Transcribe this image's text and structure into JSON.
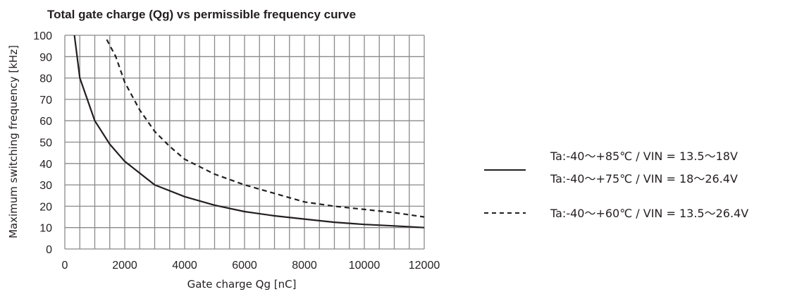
{
  "chart_data": {
    "type": "line",
    "title": "Total gate charge (Qg) vs permissible frequency curve",
    "xlabel": "Gate charge Qg [nC]",
    "ylabel": "Maximum switching frequency [kHz]",
    "xlim": [
      0,
      12000
    ],
    "ylim": [
      0,
      100
    ],
    "x_ticks": [
      "0",
      "2000",
      "4000",
      "6000",
      "8000",
      "10000",
      "12000"
    ],
    "y_ticks": [
      "0",
      "10",
      "20",
      "30",
      "40",
      "50",
      "60",
      "70",
      "80",
      "90",
      "100"
    ],
    "grid": true,
    "legend_position": "right",
    "series": [
      {
        "style": "solid",
        "labels": [
          "Ta:-40～+85℃ / VIN = 13.5～18V",
          "Ta:-40～+75℃ / VIN = 18～26.4V"
        ],
        "points": [
          [
            320,
            100
          ],
          [
            500,
            80
          ],
          [
            750,
            70
          ],
          [
            1000,
            60
          ],
          [
            1500,
            49
          ],
          [
            2000,
            41
          ],
          [
            3000,
            30
          ],
          [
            4000,
            24.5
          ],
          [
            5000,
            20.5
          ],
          [
            6000,
            17.5
          ],
          [
            7000,
            15.5
          ],
          [
            8000,
            14
          ],
          [
            9000,
            12.5
          ],
          [
            10000,
            11.5
          ],
          [
            11000,
            10.8
          ],
          [
            12000,
            10
          ]
        ]
      },
      {
        "style": "dashed",
        "labels": [
          "Ta:-40～+60℃ / VIN = 13.5～26.4V"
        ],
        "points": [
          [
            1400,
            98
          ],
          [
            1700,
            90
          ],
          [
            2000,
            78
          ],
          [
            2500,
            65
          ],
          [
            3000,
            55
          ],
          [
            3500,
            48
          ],
          [
            4000,
            42
          ],
          [
            5000,
            35
          ],
          [
            6000,
            30
          ],
          [
            7000,
            26
          ],
          [
            8000,
            22
          ],
          [
            9000,
            20
          ],
          [
            10000,
            18.5
          ],
          [
            11000,
            17
          ],
          [
            12000,
            15
          ]
        ]
      }
    ]
  }
}
